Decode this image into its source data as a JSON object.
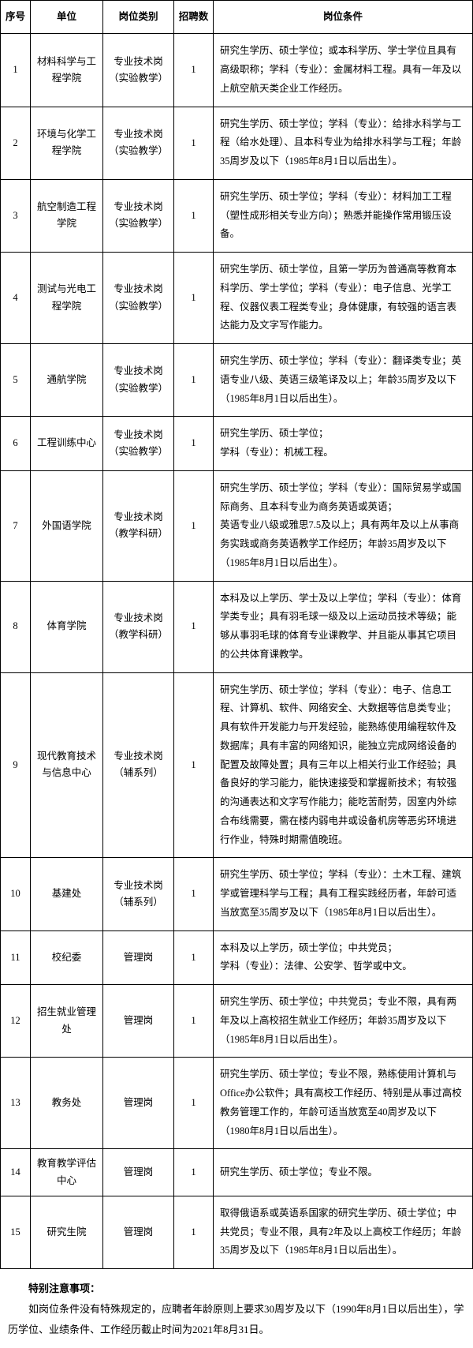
{
  "headers": {
    "seq": "序号",
    "unit": "单位",
    "type": "岗位类别",
    "count": "招聘数",
    "conditions": "岗位条件"
  },
  "rows": [
    {
      "seq": "1",
      "unit": "材料科学与工程学院",
      "type": "专业技术岗（实验教学）",
      "count": "1",
      "conditions": "研究生学历、硕士学位；或本科学历、学士学位且具有高级职称；学科（专业）：金属材料工程。具有一年及以上航空航天类企业工作经历。"
    },
    {
      "seq": "2",
      "unit": "环境与化学工程学院",
      "type": "专业技术岗（实验教学）",
      "count": "1",
      "conditions": "研究生学历、硕士学位；学科（专业）：给排水科学与工程（给水处理）、且本科专业为给排水科学与工程；年龄35周岁及以下（1985年8月1日以后出生）。"
    },
    {
      "seq": "3",
      "unit": "航空制造工程学院",
      "type": "专业技术岗（实验教学）",
      "count": "1",
      "conditions": "研究生学历、硕士学位；学科（专业）：材料加工工程（塑性成形相关专业方向）；熟悉并能操作常用锻压设备。"
    },
    {
      "seq": "4",
      "unit": "测试与光电工程学院",
      "type": "专业技术岗（实验教学）",
      "count": "1",
      "conditions": "研究生学历、硕士学位，且第一学历为普通高等教育本科学历、学士学位；学科（专业）：电子信息、光学工程、仪器仪表工程类专业；身体健康，有较强的语言表达能力及文字写作能力。"
    },
    {
      "seq": "5",
      "unit": "通航学院",
      "type": "专业技术岗（实验教学）",
      "count": "1",
      "conditions": "研究生学历、硕士学位；学科（专业）：翻译类专业；英语专业八级、英语三级笔译及以上；年龄35周岁及以下（1985年8月1日以后出生）。"
    },
    {
      "seq": "6",
      "unit": "工程训练中心",
      "type": "专业技术岗（实验教学）",
      "count": "1",
      "conditions": "研究生学历、硕士学位；\n学科（专业）：机械工程。"
    },
    {
      "seq": "7",
      "unit": "外国语学院",
      "type": "专业技术岗（教学科研）",
      "count": "1",
      "conditions": "研究生学历、硕士学位；学科（专业）：国际贸易学或国际商务、且本科专业为商务英语或英语；\n英语专业八级或雅思7.5及以上；具有两年及以上从事商务实践或商务英语教学工作经历；年龄35周岁及以下（1985年8月1日以后出生）。"
    },
    {
      "seq": "8",
      "unit": "体育学院",
      "type": "专业技术岗（教学科研）",
      "count": "1",
      "conditions": "本科及以上学历、学士及以上学位；学科（专业）：体育学类专业；具有羽毛球一级及以上运动员技术等级；能够从事羽毛球的体育专业课教学、并且能从事其它项目的公共体育课教学。"
    },
    {
      "seq": "9",
      "unit": "现代教育技术与信息中心",
      "type": "专业技术岗（辅系列）",
      "count": "1",
      "conditions": "研究生学历、硕士学位；学科（专业）：电子、信息工程、计算机、软件、网络安全、大数据等信息类专业；具有软件开发能力与开发经验，能熟练使用编程软件及数据库；具有丰富的网络知识，能独立完成网络设备的配置及故障处置；具有三年以上相关行业工作经验；具备良好的学习能力，能快速接受和掌握新技术；有较强的沟通表达和文字写作能力；能吃苦耐劳，因室内外综合布线需要，需在楼内弱电井或设备机房等恶劣环境进行作业，特殊时期需值晚班。"
    },
    {
      "seq": "10",
      "unit": "基建处",
      "type": "专业技术岗（辅系列）",
      "count": "1",
      "conditions": "研究生学历、硕士学位；学科（专业）：土木工程、建筑学或管理科学与工程；具有工程实践经历者，年龄可适当放宽至35周岁及以下（1985年8月1日以后出生）。"
    },
    {
      "seq": "11",
      "unit": "校纪委",
      "type": "管理岗",
      "count": "1",
      "conditions": "本科及以上学历，硕士学位；中共党员；\n学科（专业）：法律、公安学、哲学或中文。"
    },
    {
      "seq": "12",
      "unit": "招生就业管理处",
      "type": "管理岗",
      "count": "1",
      "conditions": "研究生学历、硕士学位；中共党员；专业不限，具有两年及以上高校招生就业工作经历；年龄35周岁及以下（1985年8月1日以后出生）。"
    },
    {
      "seq": "13",
      "unit": "教务处",
      "type": "管理岗",
      "count": "1",
      "conditions": "研究生学历、硕士学位；专业不限，熟练使用计算机与Office办公软件；具有高校工作经历、特别是从事过高校教务管理工作的，年龄可适当放宽至40周岁及以下（1980年8月1日以后出生）。"
    },
    {
      "seq": "14",
      "unit": "教育教学评估中心",
      "type": "管理岗",
      "count": "1",
      "conditions": "研究生学历、硕士学位；专业不限。"
    },
    {
      "seq": "15",
      "unit": "研究生院",
      "type": "管理岗",
      "count": "1",
      "conditions": "取得俄语系或英语系国家的研究生学历、硕士学位；中共党员；专业不限，具有2年及以上高校工作经历；年龄35周岁及以下（1985年8月1日以后出生）。"
    }
  ],
  "notes": {
    "title": "特别注意事项：",
    "body": "如岗位条件没有特殊规定的，应聘者年龄原则上要求30周岁及以下（1990年8月1日以后出生），学历学位、业绩条件、工作经历截止时间为2021年8月31日。"
  }
}
